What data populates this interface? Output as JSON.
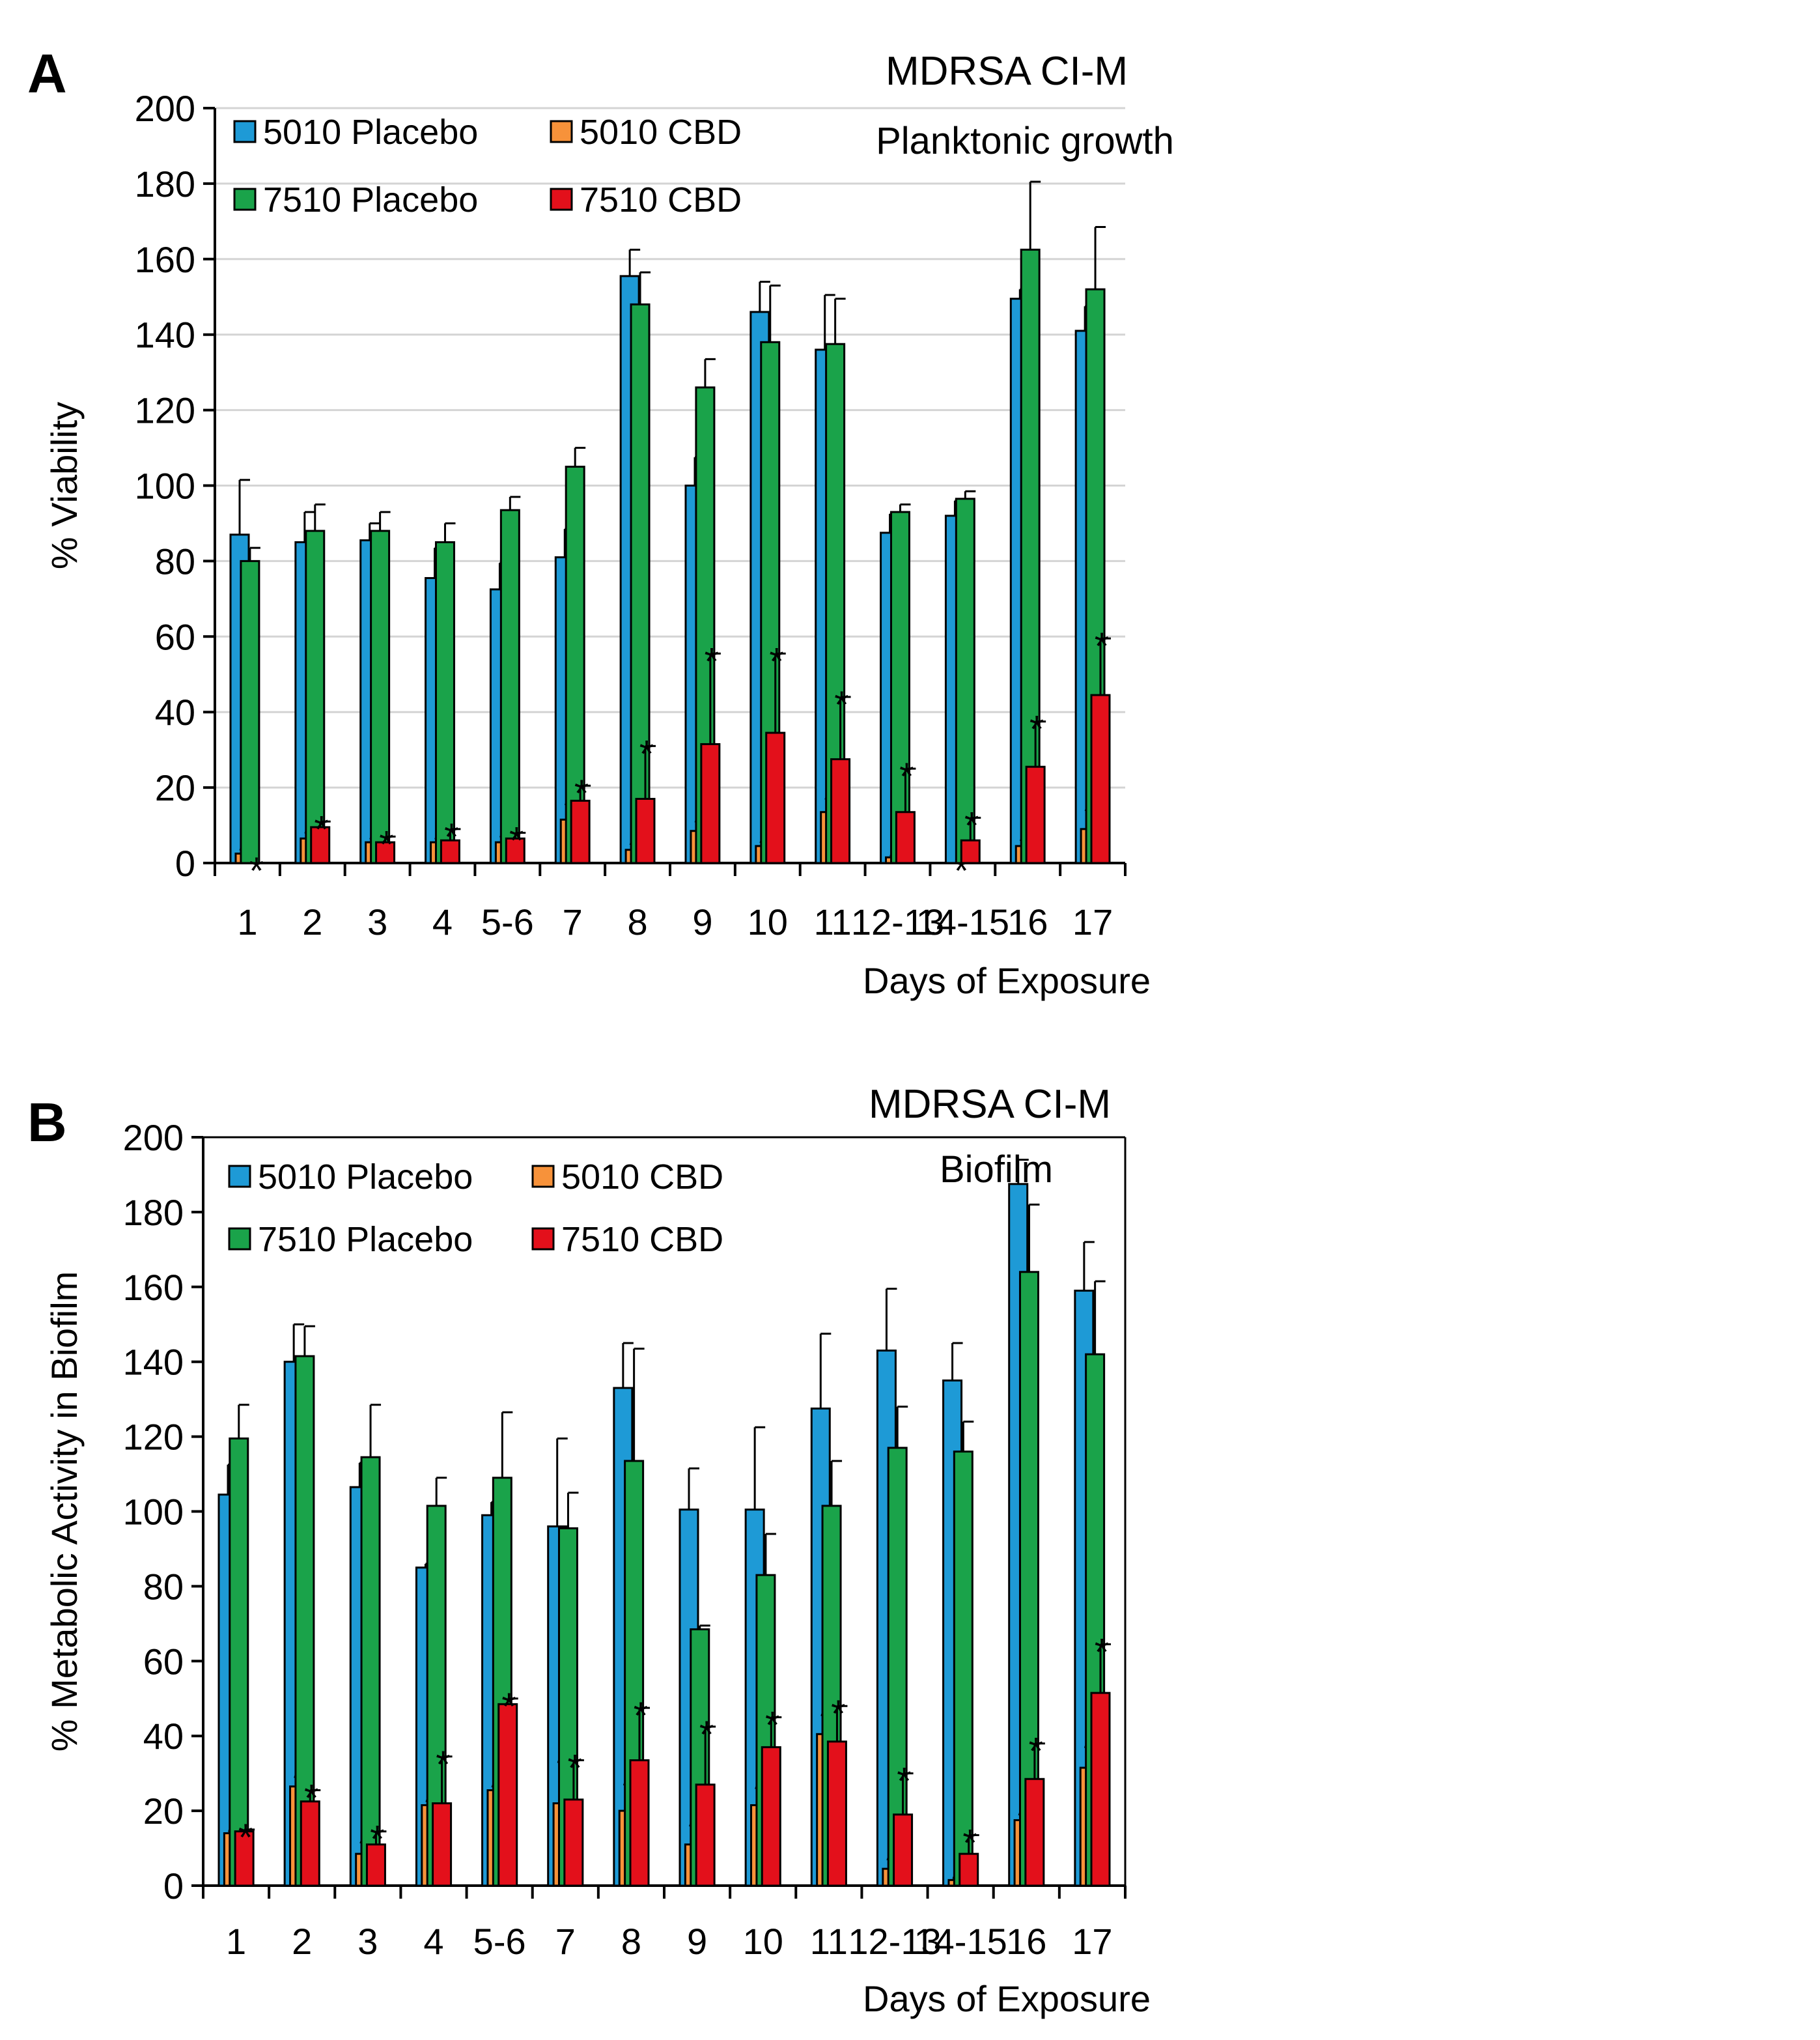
{
  "chart_data": [
    {
      "type": "bar",
      "panel_label": "A",
      "title": "MDRSA CI-M",
      "subtitle": "Planktonic growth",
      "xlabel": "Days of Exposure",
      "ylabel": "% Viability",
      "ylim": [
        0,
        200
      ],
      "yticks": [
        0,
        20,
        40,
        60,
        80,
        100,
        120,
        140,
        160,
        180,
        200
      ],
      "grid": true,
      "legend_position": "top-left",
      "significance_marker": "*",
      "categories": [
        "1",
        "2",
        "3",
        "4",
        "5-6",
        "7",
        "8",
        "9",
        "10",
        "11",
        "12-13",
        "14-15",
        "16",
        "17"
      ],
      "series": [
        {
          "name": "5010 Placebo",
          "color": "#1e9ad6",
          "values": [
            87,
            85,
            85.5,
            75.5,
            72.5,
            81,
            155.5,
            100,
            146,
            136,
            87.5,
            92,
            149.5,
            141
          ],
          "errors": [
            14.5,
            8,
            4.5,
            8,
            7,
            7.5,
            7,
            7.5,
            8,
            14.5,
            5,
            4,
            2.5,
            6.5
          ],
          "significant": [
            false,
            false,
            false,
            false,
            false,
            false,
            false,
            false,
            false,
            false,
            false,
            false,
            false,
            false
          ]
        },
        {
          "name": "5010 CBD",
          "color": "#f7923a",
          "values": [
            2.5,
            6.5,
            5.5,
            5.5,
            5.5,
            11.5,
            3.5,
            8.5,
            4.5,
            13.5,
            1.5,
            0,
            4.5,
            9
          ],
          "errors": [
            1,
            1.5,
            1,
            1,
            1.5,
            4,
            1.5,
            2.5,
            1,
            3.5,
            0.5,
            0,
            1.5,
            5
          ],
          "significant": [
            true,
            true,
            true,
            true,
            true,
            true,
            true,
            true,
            true,
            true,
            true,
            true,
            true,
            true
          ]
        },
        {
          "name": "7510 Placebo",
          "color": "#1aa34a",
          "values": [
            80,
            88,
            88,
            85,
            93.5,
            105,
            148,
            126,
            138,
            137.5,
            93,
            96.5,
            162.5,
            152
          ],
          "errors": [
            3.5,
            7,
            5,
            5,
            3.5,
            5,
            8.5,
            7.5,
            15,
            12,
            2,
            2,
            18,
            16.5
          ],
          "significant": [
            false,
            false,
            false,
            false,
            false,
            false,
            false,
            false,
            false,
            false,
            false,
            false,
            false,
            false
          ]
        },
        {
          "name": "7510 CBD",
          "color": "#e3101b",
          "values": [
            0,
            9.5,
            5.5,
            6,
            6.5,
            16.5,
            17,
            31.5,
            34.5,
            27.5,
            13.5,
            6,
            25.5,
            44.5
          ],
          "errors": [
            0,
            1.5,
            1.5,
            3,
            1.5,
            4,
            14,
            24,
            21,
            16.5,
            11.5,
            6,
            12,
            15
          ],
          "significant": [
            true,
            true,
            true,
            true,
            true,
            true,
            true,
            true,
            true,
            true,
            true,
            true,
            true,
            true
          ]
        }
      ]
    },
    {
      "type": "bar",
      "panel_label": "B",
      "title": "MDRSA CI-M",
      "subtitle": "Biofilm",
      "xlabel": "Days of Exposure",
      "ylabel": "% Metabolic Activity in Biofilm",
      "ylim": [
        0,
        200
      ],
      "yticks": [
        0,
        20,
        40,
        60,
        80,
        100,
        120,
        140,
        160,
        180,
        200
      ],
      "grid": false,
      "legend_position": "top-left",
      "significance_marker": "*",
      "categories": [
        "1",
        "2",
        "3",
        "4",
        "5-6",
        "7",
        "8",
        "9",
        "10",
        "11",
        "12-13",
        "14-15",
        "16",
        "17"
      ],
      "series": [
        {
          "name": "5010 Placebo",
          "color": "#1e9ad6",
          "values": [
            104.5,
            140,
            106.5,
            85,
            99,
            96,
            133,
            100.5,
            100.5,
            127.5,
            143,
            135,
            187.5,
            159
          ],
          "errors": [
            8,
            10,
            6.5,
            1,
            3.5,
            23.5,
            12,
            11,
            22,
            20,
            16.5,
            10,
            6.5,
            13
          ],
          "significant": [
            false,
            false,
            false,
            false,
            false,
            false,
            false,
            false,
            false,
            false,
            false,
            false,
            false,
            false
          ]
        },
        {
          "name": "5010 CBD",
          "color": "#f7923a",
          "values": [
            14,
            26.5,
            8.5,
            21.5,
            25.5,
            22,
            20,
            11,
            21.5,
            40.5,
            4.5,
            1.5,
            17.5,
            31.5
          ],
          "errors": [
            0.5,
            2.5,
            3,
            1,
            1,
            11,
            7,
            5,
            4.5,
            5,
            2.5,
            0.5,
            1.5,
            5.5
          ],
          "significant": [
            true,
            true,
            true,
            true,
            true,
            true,
            true,
            true,
            true,
            true,
            true,
            true,
            true,
            true
          ]
        },
        {
          "name": "7510 Placebo",
          "color": "#1aa34a",
          "values": [
            119.5,
            141.5,
            114.5,
            101.5,
            109,
            95.5,
            113.5,
            68.5,
            83,
            101.5,
            117,
            116,
            164,
            142
          ],
          "errors": [
            9,
            8,
            14,
            7.5,
            17.5,
            9.5,
            30,
            1,
            11,
            12,
            11,
            8,
            18,
            19.5
          ],
          "significant": [
            false,
            false,
            false,
            false,
            false,
            false,
            false,
            false,
            false,
            false,
            false,
            false,
            false,
            false
          ]
        },
        {
          "name": "7510 CBD",
          "color": "#e3101b",
          "values": [
            14.5,
            22.5,
            11,
            22,
            48.5,
            23,
            33.5,
            27,
            37,
            38.5,
            19,
            8.5,
            28.5,
            51.5
          ],
          "errors": [
            0.5,
            3,
            3.5,
            12.5,
            1.5,
            10.5,
            14,
            15.5,
            8,
            9.5,
            11,
            5,
            9.5,
            13
          ],
          "significant": [
            true,
            true,
            true,
            true,
            true,
            true,
            true,
            true,
            true,
            true,
            true,
            true,
            true,
            true
          ]
        }
      ]
    }
  ]
}
